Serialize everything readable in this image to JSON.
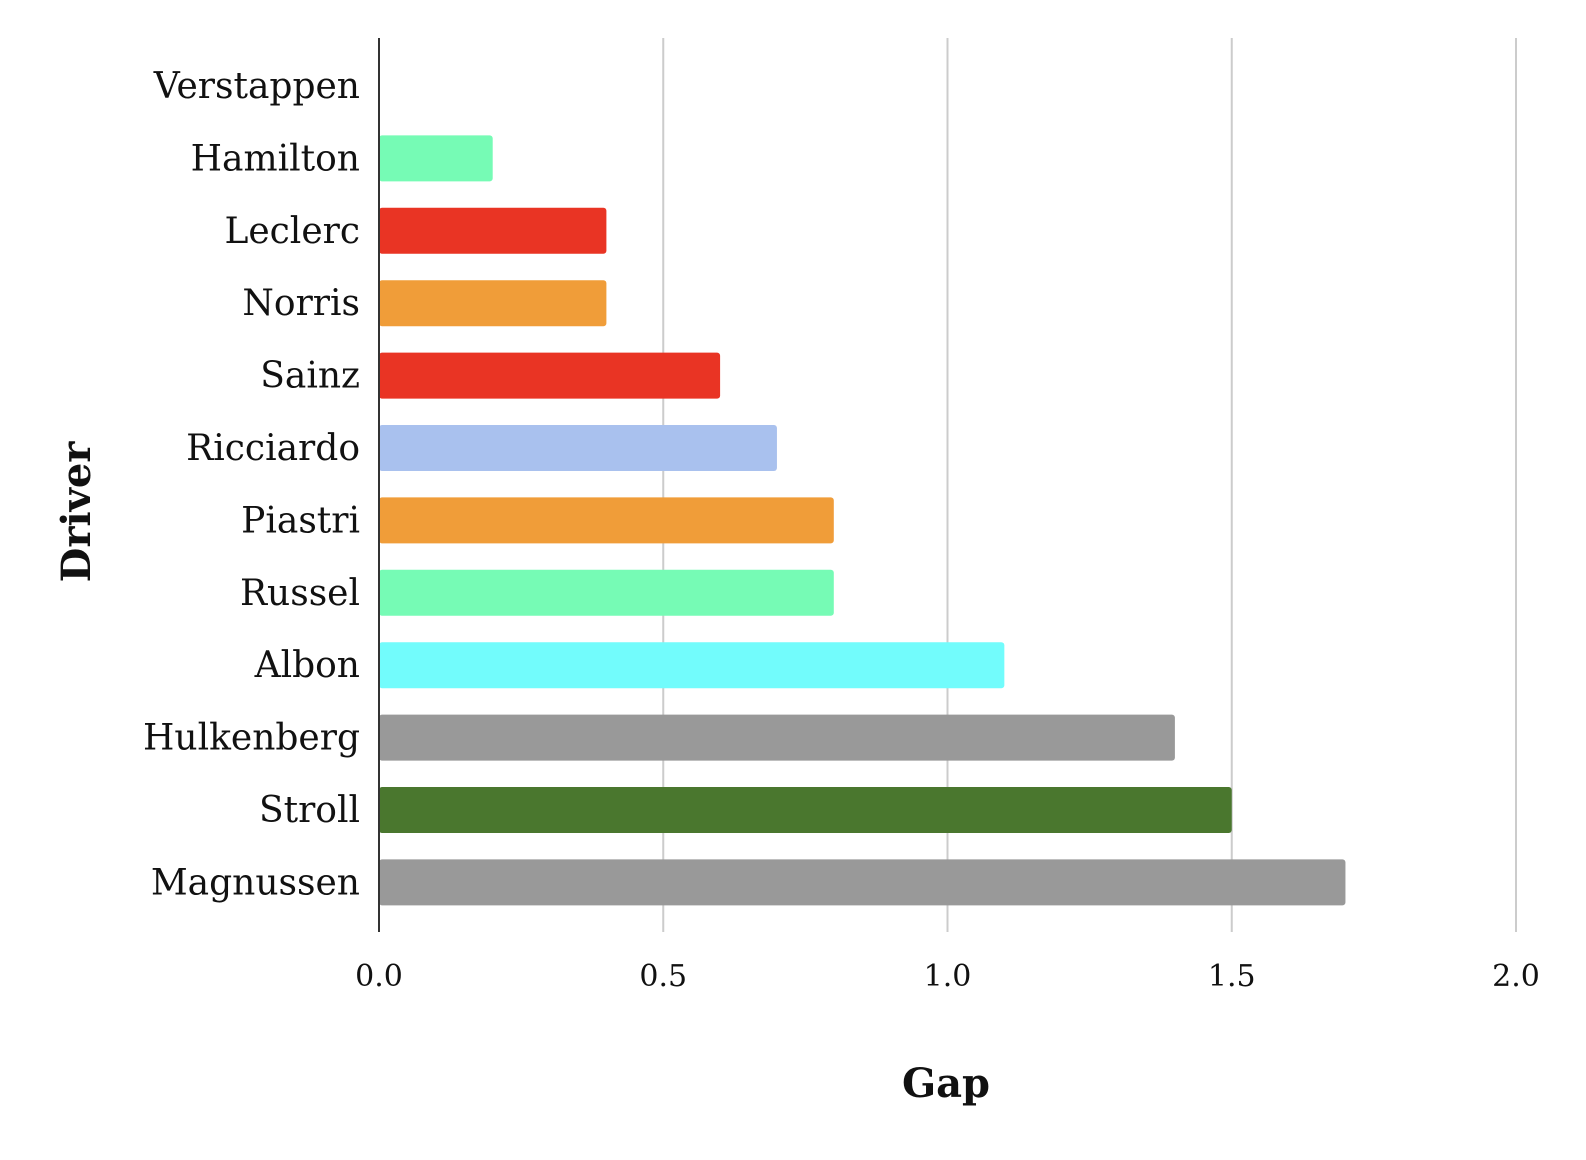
{
  "chart_data": {
    "type": "bar",
    "orientation": "horizontal",
    "categories": [
      "Verstappen",
      "Hamilton",
      "Leclerc",
      "Norris",
      "Sainz",
      "Ricciardo",
      "Piastri",
      "Russel",
      "Albon",
      "Hulkenberg",
      "Stroll",
      "Magnussen"
    ],
    "values": [
      0.0,
      0.2,
      0.4,
      0.4,
      0.6,
      0.7,
      0.8,
      0.8,
      1.1,
      1.4,
      1.5,
      1.7
    ],
    "colors": [
      "#ffffff",
      "#76fbb5",
      "#e93424",
      "#f09d39",
      "#e93424",
      "#a9c1ee",
      "#f09d39",
      "#76fbb5",
      "#72fcfc",
      "#999999",
      "#4a772e",
      "#999999"
    ],
    "xlabel": "Gap",
    "ylabel": "Driver",
    "xlim": [
      0.0,
      2.0
    ],
    "xticks": [
      0.0,
      0.5,
      1.0,
      1.5,
      2.0
    ],
    "xtick_labels": [
      "0.0",
      "0.5",
      "1.0",
      "1.5",
      "2.0"
    ],
    "grid": "vertical",
    "legend": "none"
  }
}
